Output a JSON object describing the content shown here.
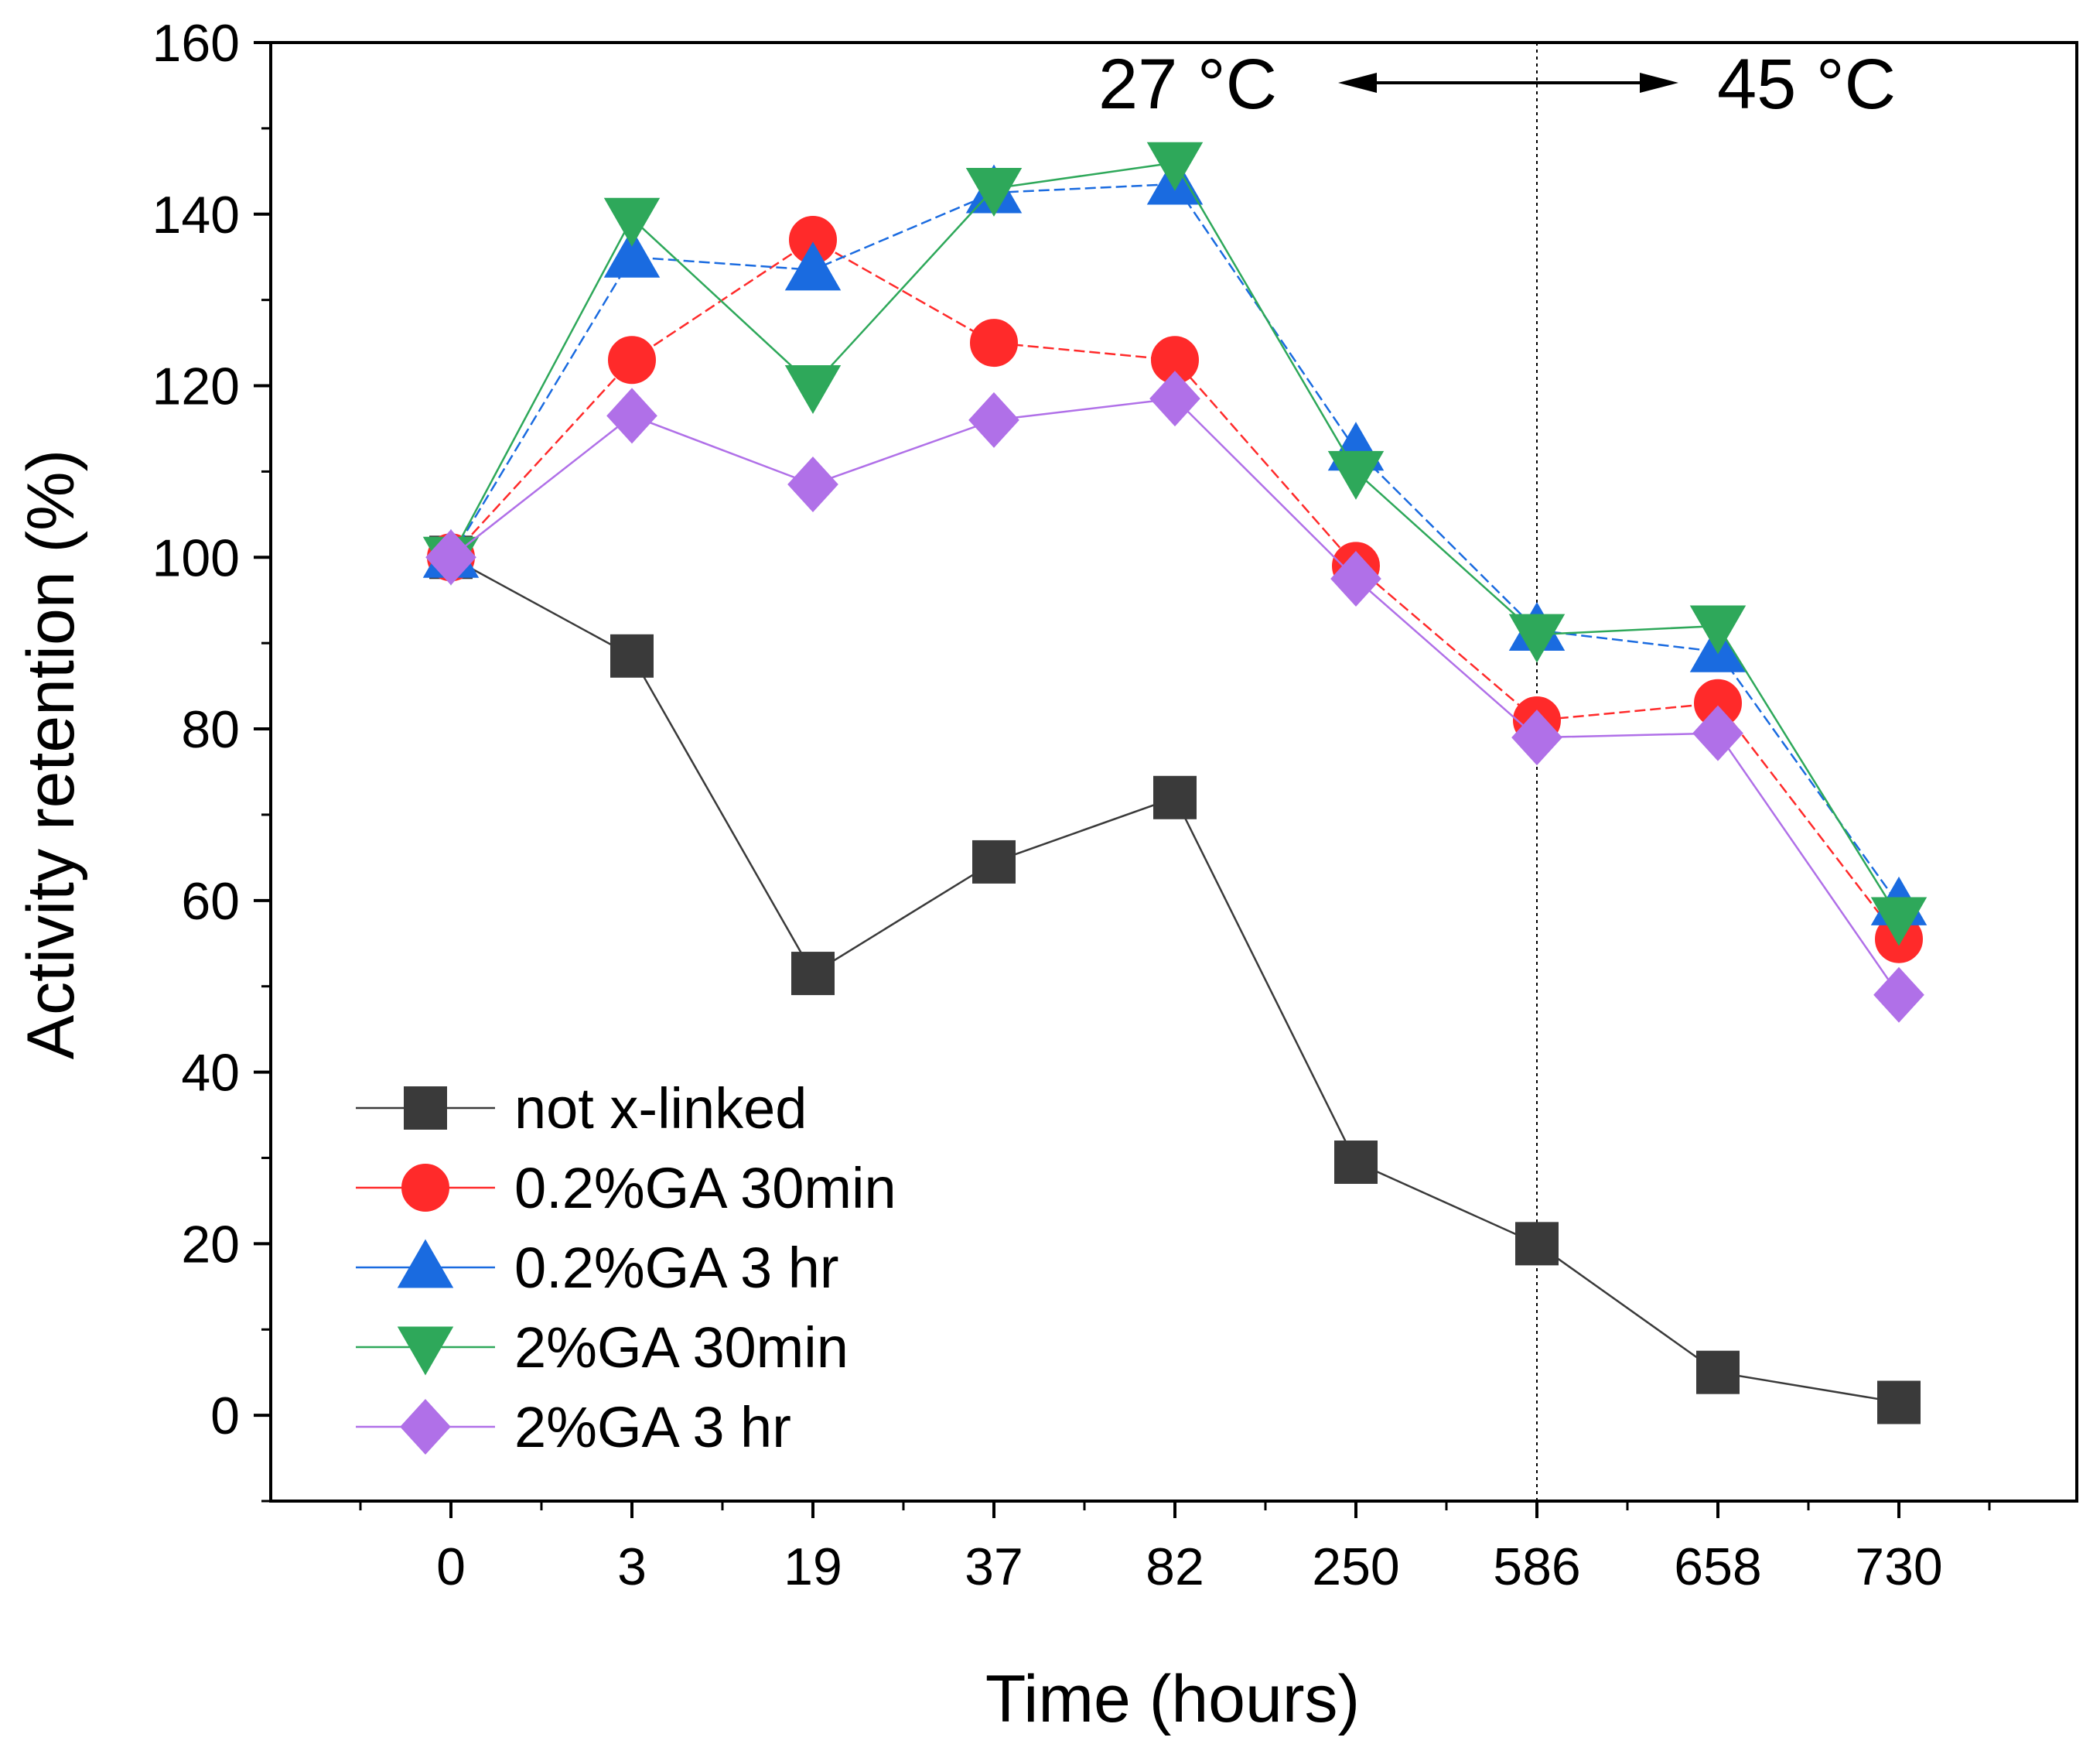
{
  "chart_data": {
    "type": "line",
    "xlabel": "Time (hours)",
    "ylabel": "Activity retention (%)",
    "ylim": [
      -10,
      160
    ],
    "yticks": [
      0,
      20,
      40,
      60,
      80,
      100,
      120,
      140,
      160
    ],
    "categories": [
      "0",
      "3",
      "19",
      "37",
      "82",
      "250",
      "586",
      "658",
      "730"
    ],
    "grid": false,
    "legend_position": "bottom-left",
    "series": [
      {
        "name": "not x-linked",
        "color": "#3a3a3a",
        "marker": "square",
        "dash": "solid",
        "values": [
          100,
          88.5,
          51.5,
          64.5,
          72,
          29.5,
          20,
          5,
          1.5
        ]
      },
      {
        "name": "0.2%GA 30min",
        "color": "#ff2a2a",
        "marker": "circle",
        "dash": "dashed",
        "values": [
          100,
          123,
          137,
          125,
          123,
          99,
          81,
          83,
          55.5
        ]
      },
      {
        "name": "0.2%GA 3 hr",
        "color": "#1a6be0",
        "marker": "triangle-up",
        "dash": "dashed",
        "values": [
          100,
          135,
          133.5,
          142.5,
          143.5,
          112.5,
          91.5,
          89,
          59.5
        ]
      },
      {
        "name": "2%GA 30min",
        "color": "#2ea85a",
        "marker": "triangle-down",
        "dash": "solid",
        "values": [
          100,
          139.5,
          120,
          143,
          146,
          110,
          91,
          92,
          58
        ]
      },
      {
        "name": "2%GA 3 hr",
        "color": "#b070e8",
        "marker": "diamond",
        "dash": "solid",
        "values": [
          100,
          116.5,
          108.5,
          116,
          118.5,
          97.5,
          79,
          79.5,
          49
        ]
      }
    ],
    "annotations": {
      "left_temp": "27 °C",
      "right_temp": "45 °C",
      "divider_category": "586"
    }
  }
}
